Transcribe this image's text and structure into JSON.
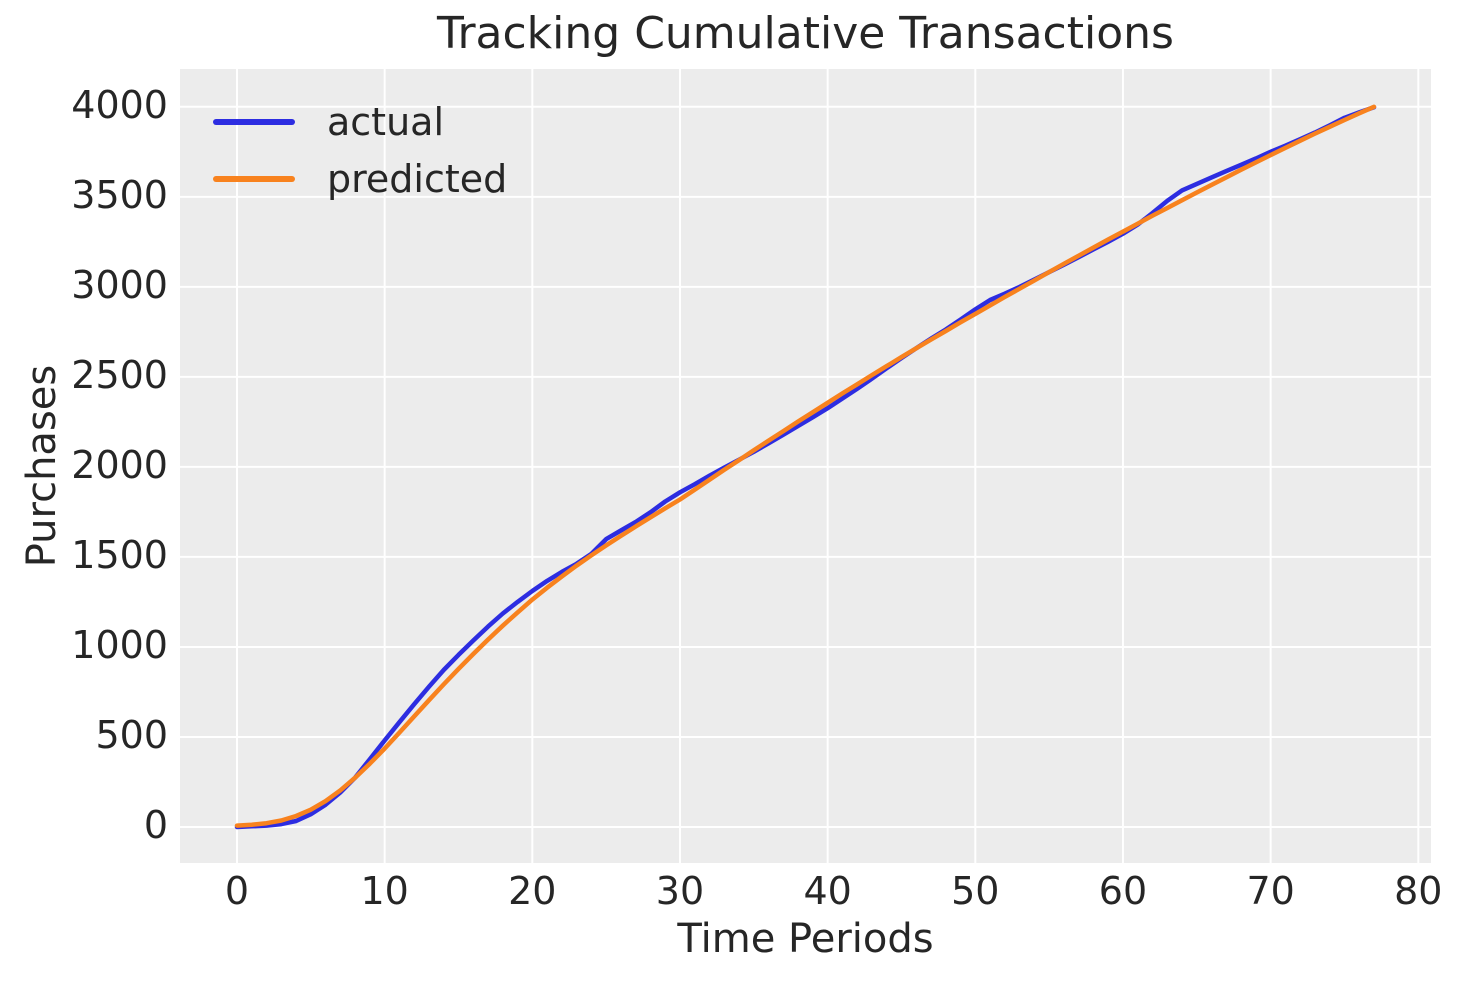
{
  "chart_data": {
    "type": "line",
    "title": "Tracking Cumulative Transactions",
    "xlabel": "Time Periods",
    "ylabel": "Purchases",
    "xlim": [
      -3.86,
      80.86
    ],
    "ylim": [
      -200,
      4210
    ],
    "xticks": [
      0,
      10,
      20,
      30,
      40,
      50,
      60,
      70,
      80
    ],
    "yticks": [
      0,
      500,
      1000,
      1500,
      2000,
      2500,
      3000,
      3500,
      4000
    ],
    "grid": true,
    "legend_position": "upper left",
    "plot_background_color": "#ececec",
    "gridline_color": "#ffffff",
    "text_color": "#262626",
    "x": [
      0,
      1,
      2,
      3,
      4,
      5,
      6,
      7,
      8,
      9,
      10,
      11,
      12,
      13,
      14,
      15,
      16,
      17,
      18,
      19,
      20,
      21,
      22,
      23,
      24,
      25,
      26,
      27,
      28,
      29,
      30,
      31,
      32,
      33,
      34,
      35,
      36,
      37,
      38,
      39,
      40,
      41,
      42,
      43,
      44,
      45,
      46,
      47,
      48,
      49,
      50,
      51,
      52,
      53,
      54,
      55,
      56,
      57,
      58,
      59,
      60,
      61,
      62,
      63,
      64,
      65,
      66,
      67,
      68,
      69,
      70,
      71,
      72,
      73,
      74,
      75,
      76,
      77
    ],
    "series": [
      {
        "name": "actual",
        "color": "#2d2de1",
        "values": [
          0,
          4,
          8,
          16,
          33,
          71,
          124,
          192,
          274,
          377,
          481,
          582,
          682,
          779,
          872,
          956,
          1036,
          1113,
          1186,
          1250,
          1311,
          1367,
          1417,
          1462,
          1517,
          1599,
          1647,
          1694,
          1748,
          1808,
          1859,
          1904,
          1951,
          1996,
          2040,
          2084,
          2131,
          2179,
          2227,
          2276,
          2326,
          2380,
          2434,
          2490,
          2548,
          2605,
          2659,
          2712,
          2763,
          2818,
          2875,
          2927,
          2962,
          3000,
          3041,
          3082,
          3123,
          3165,
          3208,
          3251,
          3295,
          3346,
          3410,
          3478,
          3536,
          3572,
          3608,
          3643,
          3678,
          3713,
          3750,
          3784,
          3820,
          3857,
          3897,
          3939,
          3969,
          3997
        ]
      },
      {
        "name": "predicted",
        "color": "#f8821e",
        "values": [
          8,
          13,
          21,
          36,
          61,
          96,
          144,
          204,
          274,
          352,
          436,
          524,
          614,
          704,
          792,
          878,
          961,
          1041,
          1118,
          1192,
          1263,
          1329,
          1392,
          1452,
          1509,
          1564,
          1617,
          1669,
          1720,
          1770,
          1819,
          1874,
          1929,
          1984,
          2038,
          2092,
          2146,
          2199,
          2252,
          2304,
          2356,
          2408,
          2459,
          2510,
          2560,
          2610,
          2659,
          2707,
          2755,
          2803,
          2850,
          2897,
          2944,
          2990,
          3036,
          3082,
          3128,
          3173,
          3218,
          3263,
          3307,
          3351,
          3395,
          3438,
          3481,
          3524,
          3566,
          3608,
          3650,
          3691,
          3732,
          3772,
          3812,
          3851,
          3889,
          3927,
          3964,
          4000
        ]
      }
    ]
  }
}
